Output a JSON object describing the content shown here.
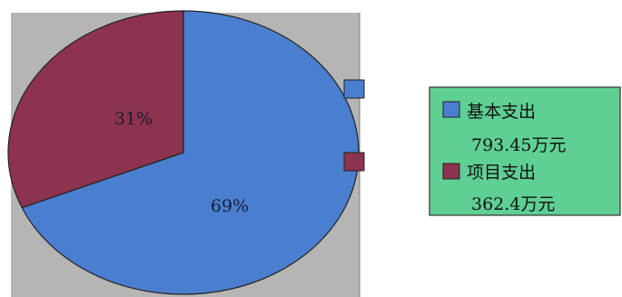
{
  "chart_data": {
    "type": "pie",
    "slices": [
      {
        "name": "基本支出",
        "value": 793.45,
        "unit": "万元",
        "label": "69%",
        "color": "#4a7fcf"
      },
      {
        "name": "项目支出",
        "value": 362.4,
        "unit": "万元",
        "label": "31%",
        "color": "#8c3350"
      }
    ],
    "legend": {
      "placement": "right",
      "background": "#5fcf93",
      "entries": [
        {
          "name": "基本支出",
          "value_text": "793.45万元",
          "color": "#4a7fcf"
        },
        {
          "name": "项目支出",
          "value_text": "362.4万元",
          "color": "#8c3350"
        }
      ]
    },
    "plot_background": "#b5b5b5",
    "title": "",
    "xlabel": "",
    "ylabel": ""
  }
}
